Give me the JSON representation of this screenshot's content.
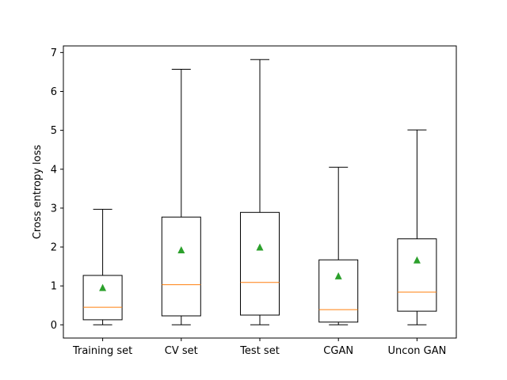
{
  "chart_data": {
    "type": "box",
    "title": "",
    "xlabel": "",
    "ylabel": "Cross entropy loss",
    "ylim": [
      -0.34,
      7.17
    ],
    "yticks": [
      0,
      1,
      2,
      3,
      4,
      5,
      6,
      7
    ],
    "categories": [
      "Training set",
      "CV set",
      "Test set",
      "CGAN",
      "Uncon GAN"
    ],
    "boxes": [
      {
        "whisker_low": 0.0,
        "q1": 0.13,
        "median": 0.45,
        "q3": 1.27,
        "whisker_high": 2.97,
        "mean": 0.95
      },
      {
        "whisker_low": 0.0,
        "q1": 0.23,
        "median": 1.03,
        "q3": 2.77,
        "whisker_high": 6.57,
        "mean": 1.92
      },
      {
        "whisker_low": 0.0,
        "q1": 0.25,
        "median": 1.09,
        "q3": 2.89,
        "whisker_high": 6.82,
        "mean": 1.99
      },
      {
        "whisker_low": 0.0,
        "q1": 0.07,
        "median": 0.39,
        "q3": 1.67,
        "whisker_high": 4.05,
        "mean": 1.25
      },
      {
        "whisker_low": 0.0,
        "q1": 0.35,
        "median": 0.84,
        "q3": 2.21,
        "whisker_high": 5.01,
        "mean": 1.66
      }
    ],
    "grid": false,
    "legend": "none",
    "colors": {
      "box": "#000000",
      "median": "#ff7f0e",
      "mean": "#2ca02c"
    }
  }
}
